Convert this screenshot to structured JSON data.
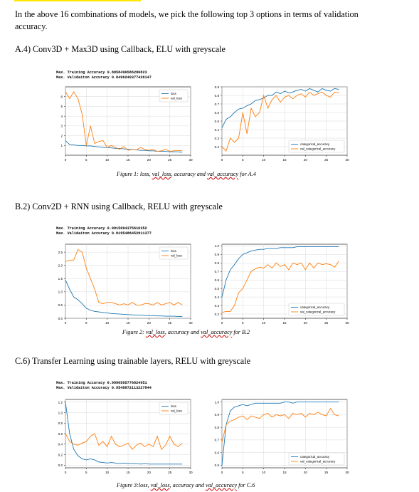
{
  "intro": "In the above 16 combinations of models, we pick the following top 3 options in terms of validation accuracy.",
  "sections": [
    {
      "heading": "A.4) Conv3D + Max3D using Callback, ELU with greyscale",
      "console": [
        "Max. Training Accuracy 0.8858490586280823",
        "Max. Validaiton Accuracy 0.8496240377426147"
      ],
      "caption": {
        "a": "Figure 1: loss, ",
        "b": "val_loss",
        "c": ", accuracy and ",
        "d": "val_accuracy",
        "e": " for A.4"
      }
    },
    {
      "heading": "B.2) Conv2D + RNN using Callback, RELU with greyscale",
      "console": [
        "Max. Training Accuracy 0.9915094375610352",
        "Max. Validaiton Accuracy 0.8195488452911377"
      ],
      "caption": {
        "a": "Figure 2: ",
        "b": "val_loss",
        "c": ", accuracy and ",
        "d": "val_accuracy",
        "e": " for B.2"
      }
    },
    {
      "heading": "C.6) Transfer Learning using trainable layers, RELU with greyscale",
      "console": [
        "Max. Training Accuracy 0.9990565776824951",
        "Max. Validaiton Accuracy 0.9548872113227844"
      ],
      "caption": {
        "a": "Figure 3:loss, ",
        "b": "val_loss",
        "c": ", accuracy and ",
        "d": "val_accuracy",
        "e": " for C.6"
      }
    }
  ],
  "colors": {
    "train": "#1f77b4",
    "val": "#ff7f0e"
  },
  "chart_data": [
    {
      "type": "line",
      "xlim": [
        0,
        30
      ],
      "ylim": [
        0,
        7
      ],
      "xticks": [
        0,
        5,
        10,
        15,
        20,
        25,
        30
      ],
      "yticks": [
        1,
        2,
        3,
        4,
        5,
        6
      ],
      "ytick_labels": [
        "1",
        "2",
        "3",
        "4",
        "5",
        "6"
      ],
      "grid": true,
      "legend_placement": "top-right",
      "series": [
        {
          "name": "loss",
          "values": [
            1.5,
            1.1,
            1.05,
            1.0,
            1.0,
            0.95,
            0.95,
            0.9,
            0.85,
            0.8,
            0.8,
            0.75,
            0.7,
            0.7,
            0.65,
            0.6,
            0.6,
            0.55,
            0.5,
            0.5,
            0.45,
            0.45,
            0.4,
            0.4,
            0.4,
            0.35,
            0.35,
            0.35,
            0.3
          ]
        },
        {
          "name": "val_loss",
          "values": [
            6.5,
            5.8,
            6.5,
            5.8,
            4.2,
            1.0,
            3.0,
            1.2,
            1.4,
            1.5,
            0.8,
            1.0,
            0.8,
            0.6,
            0.9,
            0.5,
            0.6,
            0.55,
            0.8,
            0.6,
            0.5,
            0.6,
            0.4,
            0.45,
            0.6,
            0.4,
            0.45,
            0.5,
            0.45
          ]
        }
      ]
    },
    {
      "type": "line",
      "xlim": [
        0,
        30
      ],
      "ylim": [
        0.1,
        0.9
      ],
      "xticks": [
        0,
        5,
        10,
        15,
        20,
        25,
        30
      ],
      "yticks": [
        0.2,
        0.3,
        0.4,
        0.5,
        0.6,
        0.7,
        0.8,
        0.9
      ],
      "ytick_labels": [
        "0.2",
        "0.3",
        "0.4",
        "0.5",
        "0.6",
        "0.7",
        "0.8",
        "0.9"
      ],
      "grid": true,
      "legend_placement": "bottom-right",
      "series": [
        {
          "name": "categorical_accuracy",
          "values": [
            0.42,
            0.52,
            0.55,
            0.6,
            0.64,
            0.65,
            0.68,
            0.7,
            0.74,
            0.75,
            0.77,
            0.8,
            0.8,
            0.84,
            0.82,
            0.85,
            0.83,
            0.84,
            0.86,
            0.87,
            0.85,
            0.88,
            0.86,
            0.84,
            0.88,
            0.86,
            0.85,
            0.88,
            0.87
          ]
        },
        {
          "name": "val_categorical_accuracy",
          "values": [
            0.2,
            0.15,
            0.3,
            0.25,
            0.3,
            0.6,
            0.35,
            0.65,
            0.55,
            0.6,
            0.8,
            0.65,
            0.75,
            0.8,
            0.72,
            0.78,
            0.8,
            0.76,
            0.8,
            0.82,
            0.78,
            0.84,
            0.8,
            0.82,
            0.84,
            0.8,
            0.78,
            0.84,
            0.83
          ]
        }
      ]
    },
    {
      "type": "line",
      "xlim": [
        0,
        30
      ],
      "ylim": [
        0,
        2.8
      ],
      "xticks": [
        0,
        5,
        10,
        15,
        20,
        25,
        30
      ],
      "yticks": [
        0.0,
        0.5,
        1.0,
        1.5,
        2.0,
        2.5
      ],
      "ytick_labels": [
        "0.0",
        "0.5",
        "1.0",
        "1.5",
        "2.0",
        "2.5"
      ],
      "grid": true,
      "legend_placement": "top-right",
      "series": [
        {
          "name": "loss",
          "values": [
            1.45,
            1.1,
            0.8,
            0.7,
            0.55,
            0.38,
            0.3,
            0.26,
            0.24,
            0.22,
            0.2,
            0.18,
            0.17,
            0.16,
            0.15,
            0.14,
            0.13,
            0.12,
            0.12,
            0.11,
            0.1,
            0.1,
            0.09,
            0.09,
            0.08,
            0.08,
            0.08,
            0.07,
            0.07
          ]
        },
        {
          "name": "val_loss",
          "values": [
            2.15,
            2.2,
            2.2,
            2.6,
            2.5,
            1.9,
            1.5,
            1.1,
            0.6,
            0.55,
            0.6,
            0.6,
            0.55,
            0.5,
            0.55,
            0.5,
            0.6,
            0.5,
            0.5,
            0.55,
            0.55,
            0.5,
            0.6,
            0.5,
            0.55,
            0.6,
            0.5,
            0.6,
            0.5
          ]
        }
      ]
    },
    {
      "type": "line",
      "xlim": [
        0,
        30
      ],
      "ylim": [
        0.15,
        1.02
      ],
      "xticks": [
        0,
        5,
        10,
        15,
        20,
        25,
        30
      ],
      "yticks": [
        0.2,
        0.3,
        0.4,
        0.5,
        0.6,
        0.7,
        0.8,
        0.9,
        1.0
      ],
      "ytick_labels": [
        "0.2",
        "0.3",
        "0.4",
        "0.5",
        "0.6",
        "0.7",
        "0.8",
        "0.9",
        "1.0"
      ],
      "grid": true,
      "legend_placement": "bottom-right",
      "series": [
        {
          "name": "categorical_accuracy",
          "values": [
            0.4,
            0.6,
            0.72,
            0.78,
            0.85,
            0.9,
            0.92,
            0.94,
            0.95,
            0.96,
            0.96,
            0.97,
            0.97,
            0.97,
            0.98,
            0.98,
            0.98,
            0.98,
            0.99,
            0.99,
            0.99,
            0.99,
            0.99,
            0.99,
            0.99,
            0.99,
            0.99,
            0.99,
            0.99
          ]
        },
        {
          "name": "val_categorical_accuracy",
          "values": [
            0.22,
            0.23,
            0.23,
            0.3,
            0.45,
            0.5,
            0.6,
            0.7,
            0.73,
            0.75,
            0.74,
            0.78,
            0.74,
            0.8,
            0.76,
            0.78,
            0.72,
            0.8,
            0.78,
            0.8,
            0.72,
            0.8,
            0.74,
            0.8,
            0.78,
            0.79,
            0.78,
            0.75,
            0.82
          ]
        }
      ]
    },
    {
      "type": "line",
      "xlim": [
        0,
        30
      ],
      "ylim": [
        -0.05,
        1.25
      ],
      "xticks": [
        0,
        5,
        10,
        15,
        20,
        25,
        30
      ],
      "yticks": [
        0.0,
        0.2,
        0.4,
        0.6,
        0.8,
        1.0,
        1.2
      ],
      "ytick_labels": [
        "0.0",
        "0.2",
        "0.4",
        "0.6",
        "0.8",
        "1.0",
        "1.2"
      ],
      "grid": true,
      "legend_placement": "top-right",
      "series": [
        {
          "name": "loss",
          "values": [
            1.2,
            0.6,
            0.3,
            0.18,
            0.12,
            0.1,
            0.12,
            0.1,
            0.06,
            0.05,
            0.04,
            0.05,
            0.04,
            0.03,
            0.04,
            0.03,
            0.03,
            0.03,
            0.02,
            0.03,
            0.02,
            0.02,
            0.02,
            0.02,
            0.02,
            0.02,
            0.02,
            0.02,
            0.02
          ]
        },
        {
          "name": "val_loss",
          "values": [
            0.6,
            0.45,
            0.4,
            0.38,
            0.42,
            0.45,
            0.55,
            0.6,
            0.38,
            0.45,
            0.35,
            0.55,
            0.4,
            0.35,
            0.38,
            0.42,
            0.3,
            0.38,
            0.42,
            0.35,
            0.4,
            0.35,
            0.55,
            0.3,
            0.38,
            0.55,
            0.4,
            0.35,
            0.42
          ]
        }
      ]
    },
    {
      "type": "line",
      "xlim": [
        0,
        30
      ],
      "ylim": [
        0.48,
        1.02
      ],
      "xticks": [
        0,
        5,
        10,
        15,
        20,
        25,
        30
      ],
      "yticks": [
        0.5,
        0.6,
        0.7,
        0.8,
        0.9,
        1.0
      ],
      "ytick_labels": [
        "0.5",
        "0.6",
        "0.7",
        "0.8",
        "0.9",
        "1.0"
      ],
      "grid": true,
      "legend_placement": "bottom-right",
      "series": [
        {
          "name": "categorical_accuracy",
          "values": [
            0.5,
            0.82,
            0.93,
            0.96,
            0.97,
            0.98,
            0.97,
            0.98,
            0.99,
            0.99,
            0.99,
            0.99,
            0.99,
            0.99,
            0.99,
            1.0,
            1.0,
            0.99,
            1.0,
            1.0,
            1.0,
            1.0,
            1.0,
            1.0,
            1.0,
            1.0,
            1.0,
            1.0,
            1.0
          ]
        },
        {
          "name": "val_categorical_accuracy",
          "values": [
            0.68,
            0.82,
            0.85,
            0.86,
            0.88,
            0.89,
            0.86,
            0.89,
            0.88,
            0.87,
            0.9,
            0.91,
            0.88,
            0.9,
            0.89,
            0.9,
            0.87,
            0.91,
            0.9,
            0.91,
            0.88,
            0.91,
            0.9,
            0.92,
            0.9,
            0.89,
            0.95,
            0.9,
            0.89
          ]
        }
      ]
    }
  ]
}
